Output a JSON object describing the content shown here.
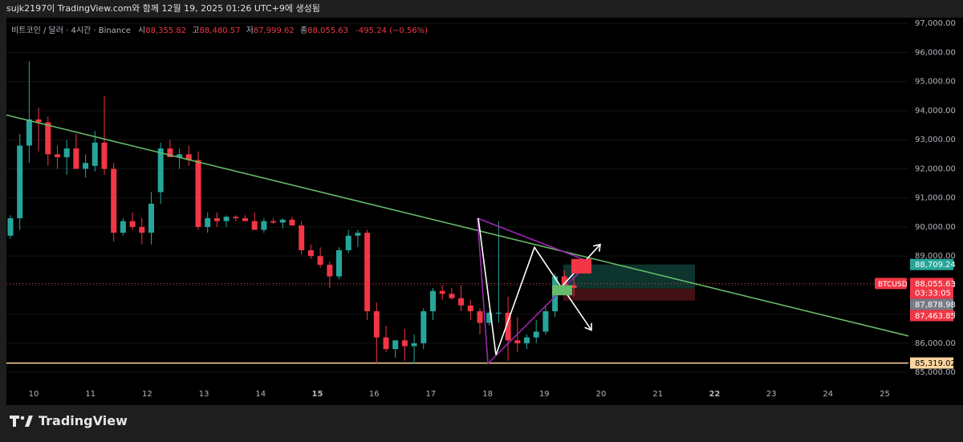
{
  "header": {
    "caption": "sujk2197이 TradingView.com와 함께 12월 19, 2025 01:26 UTC+9에 생성됨"
  },
  "legend": {
    "symbol": "비트코인 / 달러 · 4시간 · Binance",
    "open_label": "시",
    "open": "88,355.82",
    "high_label": "고",
    "high": "88,480.57",
    "low_label": "저",
    "low": "87,999.62",
    "close_label": "종",
    "close": "88,055.63",
    "change": "-495.24 (−0.56%)"
  },
  "brand": {
    "name": "TradingView"
  },
  "colors": {
    "up": "#26a69a",
    "down": "#f23645",
    "trend": "#66bb6a",
    "support": "#ffd59e",
    "triangle": "#9c27b0",
    "arrow": "#ffffff"
  },
  "chart_data": {
    "type": "candlestick",
    "x_ticks": [
      "10",
      "11",
      "12",
      "13",
      "14",
      "15",
      "16",
      "17",
      "18",
      "19",
      "20",
      "21",
      "22",
      "23",
      "24",
      "25"
    ],
    "y_ticks": [
      "85,000.00",
      "86,000.00",
      "87,000.00",
      "88,000.00",
      "89,000.00",
      "90,000.00",
      "91,000.00",
      "92,000.00",
      "93,000.00",
      "94,000.00",
      "95,000.00",
      "96,000.00",
      "97,000.00"
    ],
    "ylim": [
      84700,
      97200
    ],
    "candles": [
      [
        89700,
        90400,
        89600,
        90300
      ],
      [
        90300,
        93200,
        89900,
        92800
      ],
      [
        92800,
        95700,
        92200,
        93700
      ],
      [
        93700,
        94100,
        92600,
        93600
      ],
      [
        93600,
        93800,
        92100,
        92500
      ],
      [
        92500,
        92800,
        92000,
        92400
      ],
      [
        92400,
        93000,
        91800,
        92700
      ],
      [
        92700,
        93200,
        92100,
        92000
      ],
      [
        92000,
        92500,
        91700,
        92200
      ],
      [
        92100,
        93300,
        91900,
        92900
      ],
      [
        92900,
        94500,
        91800,
        92000
      ],
      [
        92000,
        92200,
        89500,
        89800
      ],
      [
        89800,
        90300,
        89700,
        90200
      ],
      [
        90200,
        90500,
        89900,
        90000
      ],
      [
        90000,
        90300,
        89400,
        89800
      ],
      [
        89800,
        91200,
        89400,
        90800
      ],
      [
        91200,
        92900,
        90800,
        92700
      ],
      [
        92700,
        93000,
        92500,
        92400
      ],
      [
        92400,
        92700,
        92000,
        92500
      ],
      [
        92500,
        92800,
        92100,
        92300
      ],
      [
        92300,
        92600,
        89900,
        90000
      ],
      [
        90000,
        90500,
        89800,
        90300
      ],
      [
        90300,
        90500,
        90000,
        90200
      ],
      [
        90200,
        90400,
        90000,
        90350
      ],
      [
        90350,
        90400,
        90200,
        90300
      ],
      [
        90300,
        90400,
        90200,
        90200
      ],
      [
        90200,
        90500,
        89900,
        89900
      ],
      [
        89900,
        90300,
        89800,
        90200
      ],
      [
        90200,
        90300,
        90100,
        90150
      ],
      [
        90150,
        90300,
        89950,
        90250
      ],
      [
        90250,
        90350,
        90100,
        90050
      ],
      [
        90050,
        90200,
        89050,
        89200
      ],
      [
        89200,
        89400,
        88900,
        89000
      ],
      [
        89000,
        89300,
        88600,
        88700
      ],
      [
        88700,
        88800,
        87900,
        88300
      ],
      [
        88300,
        89300,
        88200,
        89200
      ],
      [
        89200,
        89900,
        89100,
        89700
      ],
      [
        89700,
        89900,
        89300,
        89800
      ],
      [
        89800,
        89900,
        86800,
        87100
      ],
      [
        87100,
        87400,
        85300,
        86200
      ],
      [
        86200,
        86600,
        85700,
        85800
      ],
      [
        85800,
        86100,
        85500,
        86100
      ],
      [
        86100,
        86500,
        85400,
        85900
      ],
      [
        85900,
        86300,
        85300,
        86000
      ],
      [
        86000,
        87200,
        85800,
        87100
      ],
      [
        87100,
        87900,
        86800,
        87800
      ],
      [
        87800,
        88000,
        87500,
        87700
      ],
      [
        87700,
        87900,
        87500,
        87550
      ],
      [
        87550,
        88000,
        87100,
        87300
      ],
      [
        87300,
        87500,
        86800,
        87100
      ],
      [
        87100,
        87200,
        86300,
        86700
      ],
      [
        86700,
        87100,
        86600,
        87050
      ],
      [
        87050,
        90200,
        86700,
        87050
      ],
      [
        87050,
        87600,
        85400,
        86100
      ],
      [
        86100,
        86900,
        85700,
        86000
      ],
      [
        86000,
        86300,
        85800,
        86200
      ],
      [
        86200,
        86800,
        86000,
        86400
      ],
      [
        86400,
        87300,
        86300,
        87100
      ],
      [
        87100,
        88400,
        86900,
        88300
      ],
      [
        88300,
        88500,
        88000,
        88000
      ],
      [
        88000,
        88300,
        87600,
        87900
      ]
    ],
    "annotations": {
      "support_level": 85319.02,
      "last_price": 88055.63,
      "countdown": "03:33:05",
      "price_labels": [
        "88,709.24",
        "87,878.98",
        "87,463.85"
      ],
      "symbol_tag": "BTCUSD",
      "last_price_label": "88,055.63",
      "support_label": "85,319.02"
    }
  }
}
